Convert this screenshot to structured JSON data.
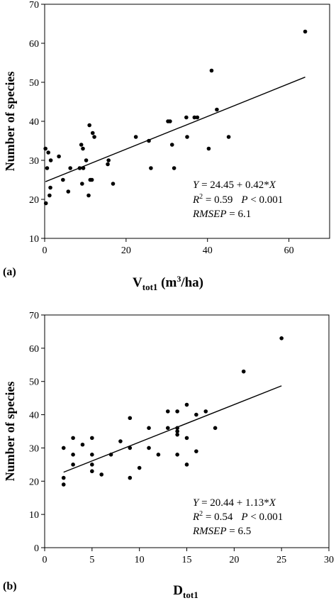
{
  "chart_data": [
    {
      "type": "scatter",
      "panel_label": "(a)",
      "ylabel": "Number of species",
      "xlabel_main": "V",
      "xlabel_sub": "tot1",
      "xlabel_unit_pre": " (m",
      "xlabel_unit_sup": "3",
      "xlabel_unit_post": "/ha)",
      "xlim": [
        0,
        70
      ],
      "ylim": [
        10,
        70
      ],
      "xticks": [
        0,
        20,
        40,
        60
      ],
      "yticks": [
        10,
        20,
        30,
        40,
        50,
        60,
        70
      ],
      "xtick_labels": [
        "0",
        "20",
        "40",
        "60"
      ],
      "ytick_labels": [
        "10",
        "20",
        "30",
        "40",
        "50",
        "60",
        "70"
      ],
      "grid": false,
      "points": [
        [
          0.2,
          33
        ],
        [
          0.3,
          19
        ],
        [
          0.6,
          28
        ],
        [
          0.9,
          32
        ],
        [
          1.2,
          21
        ],
        [
          1.4,
          23
        ],
        [
          1.5,
          30
        ],
        [
          3.5,
          31
        ],
        [
          4.5,
          25
        ],
        [
          5.8,
          22
        ],
        [
          6.3,
          28
        ],
        [
          8.6,
          28
        ],
        [
          9.0,
          34
        ],
        [
          9.2,
          24
        ],
        [
          9.4,
          33
        ],
        [
          9.5,
          28
        ],
        [
          10.2,
          30
        ],
        [
          10.8,
          21
        ],
        [
          11.0,
          39
        ],
        [
          11.2,
          25
        ],
        [
          11.6,
          25
        ],
        [
          11.8,
          37
        ],
        [
          12.2,
          36
        ],
        [
          15.5,
          29
        ],
        [
          15.7,
          30
        ],
        [
          16.8,
          24
        ],
        [
          22.4,
          36
        ],
        [
          25.6,
          35
        ],
        [
          26.1,
          28
        ],
        [
          30.3,
          40
        ],
        [
          30.8,
          40
        ],
        [
          31.3,
          34
        ],
        [
          31.8,
          28
        ],
        [
          34.8,
          41
        ],
        [
          35.0,
          36
        ],
        [
          36.8,
          41
        ],
        [
          37.5,
          41
        ],
        [
          40.3,
          33
        ],
        [
          41.0,
          53
        ],
        [
          42.3,
          43
        ],
        [
          45.2,
          36
        ],
        [
          64.0,
          63
        ]
      ],
      "fit": {
        "intercept": 24.45,
        "slope": 0.42,
        "x_range": [
          0.2,
          64.0
        ]
      },
      "annotations": {
        "eq_y": "Y",
        "eq_rest": " = 24.45 + 0.42*",
        "eq_x": "X",
        "r2_r": "R",
        "r2_sup": "2",
        "r2_val": " = 0.59",
        "p_p": "P",
        "p_val": " < 0.001",
        "rmsep_name": "RMSEP",
        "rmsep_val": " = 6.1"
      }
    },
    {
      "type": "scatter",
      "panel_label": "(b)",
      "ylabel": "Number of species",
      "xlabel_main": "D",
      "xlabel_sub": "tot1",
      "xlim": [
        0,
        30
      ],
      "ylim": [
        0,
        70
      ],
      "xticks": [
        0,
        5,
        10,
        15,
        20,
        25,
        30
      ],
      "yticks": [
        0,
        10,
        20,
        30,
        40,
        50,
        60,
        70
      ],
      "xtick_labels": [
        "0",
        "5",
        "10",
        "15",
        "20",
        "25",
        "30"
      ],
      "ytick_labels": [
        "0",
        "10",
        "20",
        "30",
        "40",
        "50",
        "60",
        "70"
      ],
      "grid": false,
      "points": [
        [
          2,
          19
        ],
        [
          2,
          21
        ],
        [
          2,
          30
        ],
        [
          3,
          33
        ],
        [
          3,
          28
        ],
        [
          3,
          25
        ],
        [
          4,
          31
        ],
        [
          5,
          33
        ],
        [
          5,
          28
        ],
        [
          5,
          25
        ],
        [
          5,
          23
        ],
        [
          6,
          22
        ],
        [
          7,
          28
        ],
        [
          8,
          32
        ],
        [
          9,
          39
        ],
        [
          9,
          30
        ],
        [
          9,
          21
        ],
        [
          10,
          24
        ],
        [
          11,
          36
        ],
        [
          11,
          30
        ],
        [
          12,
          28
        ],
        [
          13,
          41
        ],
        [
          13,
          36
        ],
        [
          14,
          41
        ],
        [
          14,
          36
        ],
        [
          14,
          35
        ],
        [
          14,
          34
        ],
        [
          14,
          28
        ],
        [
          15,
          43
        ],
        [
          15,
          33
        ],
        [
          15,
          25
        ],
        [
          16,
          40
        ],
        [
          16,
          29
        ],
        [
          17,
          41
        ],
        [
          18,
          36
        ],
        [
          21,
          53
        ],
        [
          25,
          63
        ]
      ],
      "fit": {
        "intercept": 20.44,
        "slope": 1.13,
        "x_range": [
          2,
          25
        ]
      },
      "annotations": {
        "eq_y": "Y",
        "eq_rest": " = 20.44 + 1.13*",
        "eq_x": "X",
        "r2_r": "R",
        "r2_sup": "2",
        "r2_val": " = 0.54",
        "p_p": "P",
        "p_val": " < 0.001",
        "rmsep_name": "RMSEP",
        "rmsep_val": " = 6.5"
      }
    }
  ]
}
